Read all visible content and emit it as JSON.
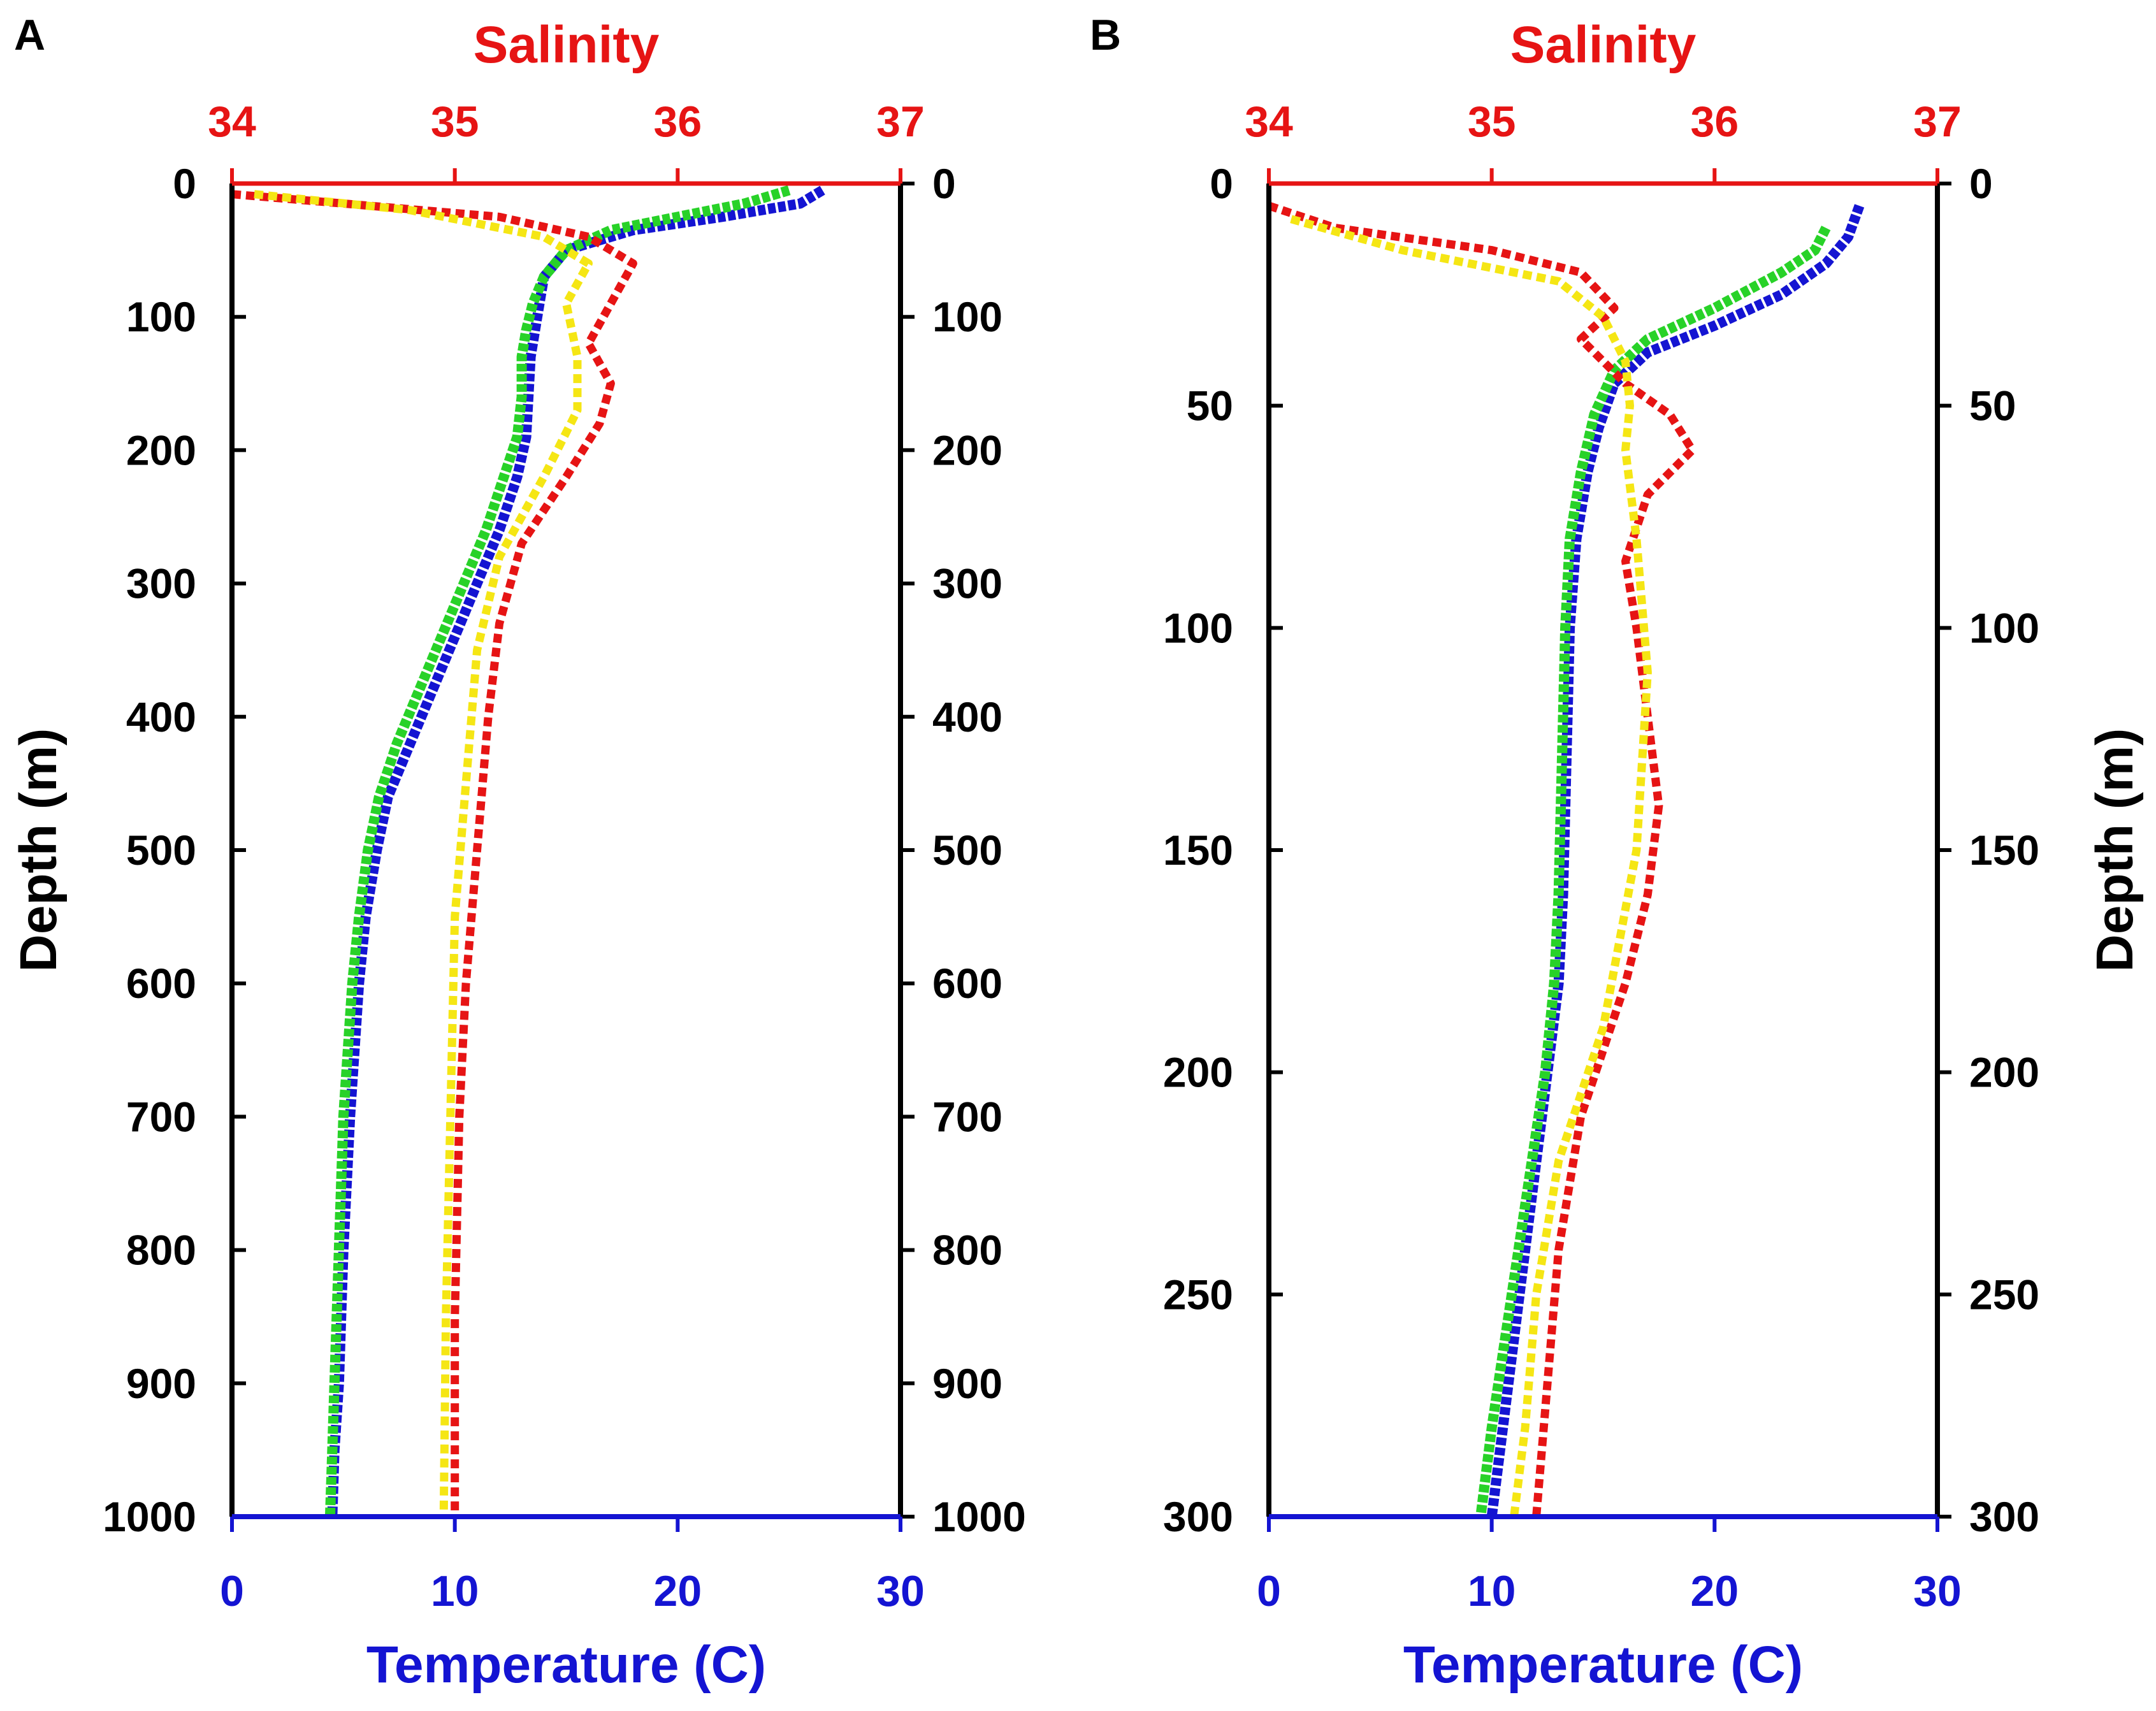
{
  "figure": {
    "colors": {
      "temperature": "#1414d2",
      "salinity": "#e61414",
      "temp_model": "#28d228",
      "sal_model": "#f5e614",
      "axis": "#000000"
    }
  },
  "chart_data": [
    {
      "type": "line",
      "panel_label": "A",
      "top_axis": {
        "label": "Salinity",
        "range": [
          34,
          37
        ],
        "ticks": [
          "34",
          "35",
          "36",
          "37"
        ]
      },
      "bottom_axis": {
        "label": "Temperature (C)",
        "range": [
          0,
          30
        ],
        "ticks": [
          "0",
          "10",
          "20",
          "30"
        ]
      },
      "left_axis": {
        "label": "Depth (m)",
        "range": [
          0,
          1000
        ],
        "ticks": [
          "0",
          "100",
          "200",
          "300",
          "400",
          "500",
          "600",
          "700",
          "800",
          "900",
          "1000"
        ]
      },
      "right_axis": {
        "label": "",
        "ticks": [
          "0",
          "100",
          "200",
          "300",
          "400",
          "500",
          "600",
          "700",
          "800",
          "900",
          "1000"
        ]
      },
      "series": [
        {
          "name": "temperature observed (blue)",
          "axis": "temperature",
          "style": "dotted",
          "color_key": "temperature",
          "x": [
            26.5,
            25.5,
            22,
            18,
            15,
            14,
            13.8,
            13.6,
            13.4,
            13.3,
            13.2,
            12.8,
            12.0,
            11.0,
            10.0,
            9.0,
            8.0,
            7.0,
            6.5,
            6.0,
            5.7,
            5.3,
            5.0,
            4.8,
            4.6,
            4.5
          ],
          "y": [
            5,
            15,
            25,
            35,
            50,
            70,
            90,
            110,
            130,
            160,
            190,
            220,
            260,
            300,
            340,
            380,
            420,
            460,
            500,
            550,
            600,
            700,
            800,
            900,
            950,
            1000
          ]
        },
        {
          "name": "temperature model (green)",
          "axis": "temperature",
          "style": "dotted",
          "color_key": "temp_model",
          "x": [
            25,
            23,
            20,
            17,
            15,
            14,
            13.5,
            13.2,
            13.0,
            13.0,
            12.8,
            12.2,
            11.4,
            10.4,
            9.4,
            8.4,
            7.4,
            6.6,
            6.1,
            5.7,
            5.4,
            5.0,
            4.8,
            4.6,
            4.5,
            4.4
          ],
          "y": [
            5,
            15,
            25,
            35,
            50,
            70,
            90,
            110,
            130,
            160,
            190,
            220,
            260,
            300,
            340,
            380,
            420,
            460,
            500,
            550,
            600,
            700,
            800,
            900,
            950,
            1000
          ]
        },
        {
          "name": "salinity observed (red)",
          "axis": "salinity",
          "style": "dotted",
          "color_key": "salinity",
          "x": [
            34.0,
            34.5,
            35.2,
            35.6,
            35.8,
            35.7,
            35.6,
            35.7,
            35.65,
            35.5,
            35.3,
            35.2,
            35.15,
            35.1,
            35.05,
            35.02,
            35.0,
            35.0
          ],
          "y": [
            8,
            15,
            25,
            40,
            60,
            90,
            120,
            150,
            180,
            220,
            270,
            330,
            400,
            500,
            600,
            700,
            850,
            1000
          ]
        },
        {
          "name": "salinity model (yellow)",
          "axis": "salinity",
          "style": "dotted",
          "color_key": "sal_model",
          "x": [
            34.1,
            34.8,
            35.4,
            35.6,
            35.5,
            35.55,
            35.55,
            35.4,
            35.2,
            35.1,
            35.05,
            35.0,
            34.98,
            34.96,
            34.95
          ],
          "y": [
            8,
            20,
            40,
            60,
            90,
            130,
            170,
            220,
            280,
            350,
            450,
            550,
            700,
            850,
            1000
          ]
        }
      ]
    },
    {
      "type": "line",
      "panel_label": "B",
      "top_axis": {
        "label": "Salinity",
        "range": [
          34,
          37
        ],
        "ticks": [
          "34",
          "35",
          "36",
          "37"
        ]
      },
      "bottom_axis": {
        "label": "Temperature (C)",
        "range": [
          0,
          30
        ],
        "ticks": [
          "0",
          "10",
          "20",
          "30"
        ]
      },
      "left_axis": {
        "label": "",
        "range": [
          0,
          300
        ],
        "ticks": [
          "0",
          "50",
          "100",
          "150",
          "200",
          "250",
          "300"
        ]
      },
      "right_axis": {
        "label": "Depth (m)",
        "ticks": [
          "0",
          "50",
          "100",
          "150",
          "200",
          "250",
          "300"
        ]
      },
      "series": [
        {
          "name": "temperature observed (blue)",
          "axis": "temperature",
          "style": "dotted",
          "color_key": "temperature",
          "x": [
            26.5,
            26.0,
            25.0,
            23.0,
            20.0,
            17.0,
            15.5,
            14.8,
            14.3,
            13.8,
            13.5,
            13.4,
            13.3,
            13.2,
            13.0,
            12.5,
            12.0,
            11.5,
            11.0,
            10.5,
            10.0
          ],
          "y": [
            5,
            12,
            18,
            25,
            32,
            38,
            45,
            55,
            65,
            80,
            100,
            120,
            140,
            160,
            180,
            200,
            220,
            240,
            260,
            280,
            300
          ]
        },
        {
          "name": "temperature model (green)",
          "axis": "temperature",
          "style": "dotted",
          "color_key": "temp_model",
          "x": [
            25.0,
            24.5,
            23.0,
            20.0,
            17.0,
            15.5,
            14.6,
            14.0,
            13.5,
            13.3,
            13.2,
            13.1,
            13.0,
            12.8,
            12.4,
            11.8,
            11.2,
            10.6,
            10.0,
            9.5
          ],
          "y": [
            10,
            15,
            20,
            28,
            35,
            42,
            52,
            65,
            80,
            100,
            120,
            140,
            160,
            180,
            200,
            220,
            240,
            260,
            280,
            300
          ]
        },
        {
          "name": "salinity observed (red)",
          "axis": "salinity",
          "style": "dotted",
          "color_key": "salinity",
          "x": [
            34.0,
            34.3,
            35.0,
            35.4,
            35.55,
            35.4,
            35.6,
            35.8,
            35.9,
            35.7,
            35.6,
            35.65,
            35.7,
            35.75,
            35.7,
            35.6,
            35.4,
            35.3,
            35.25,
            35.2
          ],
          "y": [
            5,
            10,
            15,
            20,
            28,
            35,
            45,
            52,
            60,
            70,
            85,
            100,
            120,
            140,
            160,
            180,
            210,
            240,
            270,
            300
          ]
        },
        {
          "name": "salinity model (yellow)",
          "axis": "salinity",
          "style": "dotted",
          "color_key": "sal_model",
          "x": [
            34.1,
            34.6,
            35.3,
            35.5,
            35.6,
            35.62,
            35.6,
            35.65,
            35.7,
            35.65,
            35.5,
            35.3,
            35.2,
            35.15,
            35.1
          ],
          "y": [
            8,
            15,
            22,
            30,
            40,
            50,
            60,
            80,
            110,
            150,
            190,
            220,
            250,
            280,
            300
          ]
        }
      ]
    }
  ]
}
